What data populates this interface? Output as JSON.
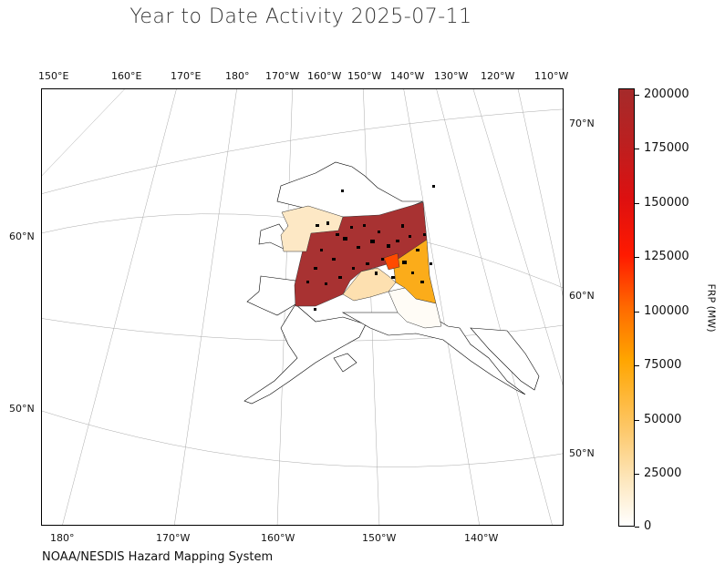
{
  "title": "Year to Date Activity 2025-07-11",
  "credit": "NOAA/NESDIS Hazard Mapping System",
  "top_longitudes": [
    "150°E",
    "160°E",
    "170°E",
    "180°",
    "170°W",
    "160°W",
    "150°W",
    "140°W",
    "130°W",
    "120°W",
    "110°W"
  ],
  "bottom_longitudes": [
    "180°",
    "170°W",
    "160°W",
    "150°W",
    "140°W"
  ],
  "left_latitudes": [
    "60°N",
    "50°N"
  ],
  "right_latitudes": [
    "70°N",
    "60°N",
    "50°N"
  ],
  "colorbar": {
    "title": "FRP (MW)",
    "ticks": [
      "200000",
      "175000",
      "150000",
      "125000",
      "100000",
      "75000",
      "50000",
      "25000",
      "0"
    ],
    "values": [
      200000,
      175000,
      150000,
      125000,
      100000,
      75000,
      50000,
      25000,
      0
    ],
    "max": 202000,
    "colors": [
      "#ffffff",
      "#fde8c0",
      "#ffa500",
      "#ff4400",
      "#a52a2a"
    ]
  },
  "regions": [
    {
      "name": "interior-high",
      "fill": "#a83232"
    },
    {
      "name": "northwest-low",
      "fill": "#fde8c5"
    },
    {
      "name": "east-mid",
      "fill": "#fbac1a"
    },
    {
      "name": "south-low",
      "fill": "#fde0b0"
    },
    {
      "name": "southeast-none",
      "fill": "#fffcf6"
    }
  ]
}
